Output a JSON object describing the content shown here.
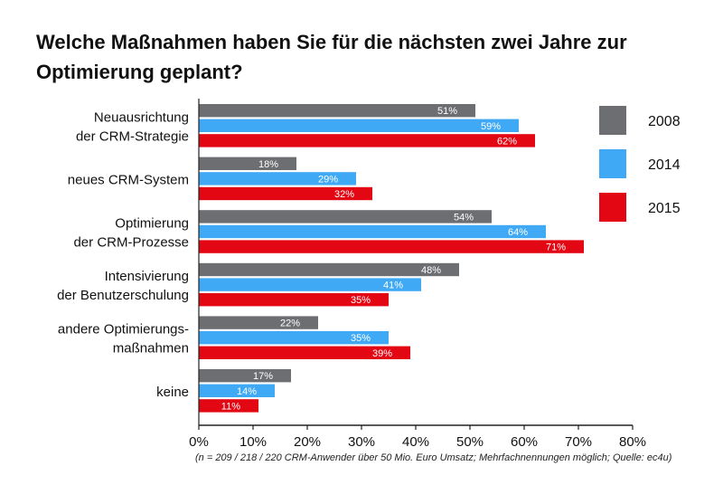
{
  "title_lines": [
    "Welche Maßnahmen haben Sie für die nächsten zwei Jahre zur",
    "Optimierung geplant?"
  ],
  "footnote": "(n = 209 / 218 / 220 CRM-Anwender über 50 Mio. Euro Umsatz; Mehrfachnennungen möglich; Quelle: ec4u)",
  "chart_data": {
    "type": "bar",
    "orientation": "horizontal",
    "title": "Welche Maßnahmen haben Sie für die nächsten zwei Jahre zur Optimierung geplant?",
    "categories": [
      [
        "Neuausrichtung",
        "der CRM-Strategie"
      ],
      [
        "neues CRM-System"
      ],
      [
        "Optimierung",
        "der CRM-Prozesse"
      ],
      [
        "Intensivierung",
        "der Benutzerschulung"
      ],
      [
        "andere Optimierungs-",
        "maßnahmen"
      ],
      [
        "keine"
      ]
    ],
    "series": [
      {
        "name": "2008",
        "color": "#6d6e71",
        "values": [
          51,
          18,
          54,
          48,
          22,
          17
        ]
      },
      {
        "name": "2014",
        "color": "#3fa9f5",
        "values": [
          59,
          29,
          64,
          41,
          35,
          14
        ]
      },
      {
        "name": "2015",
        "color": "#e30613",
        "values": [
          62,
          32,
          71,
          35,
          39,
          11
        ]
      }
    ],
    "xlim": [
      0,
      80
    ],
    "xticks": [
      0,
      10,
      20,
      30,
      40,
      50,
      60,
      70,
      80
    ],
    "tick_suffix": "%",
    "value_suffix": "%",
    "legend_position": "right",
    "grid": false
  }
}
